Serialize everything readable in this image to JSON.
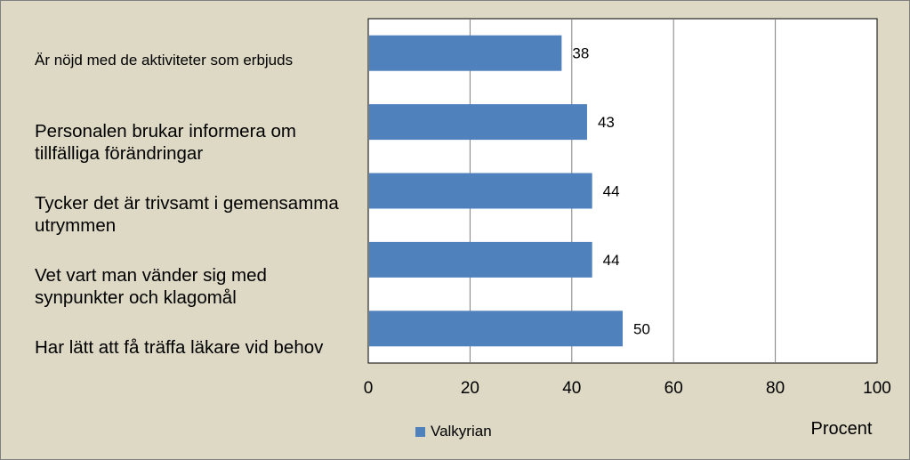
{
  "chart_data": {
    "type": "bar",
    "orientation": "horizontal",
    "categories": [
      "Är nöjd med de aktiviteter som erbjuds",
      "Personalen brukar informera om tillfälliga förändringar",
      "Tycker det är trivsamt i gemensamma utrymmen",
      "Vet vart man vänder sig med synpunkter och klagomål",
      "Har lätt att få träffa läkare vid behov"
    ],
    "series": [
      {
        "name": "Valkyrian",
        "values": [
          38,
          43,
          44,
          44,
          50
        ],
        "color": "#4f81bd"
      }
    ],
    "data_labels": [
      "38",
      "43",
      "44",
      "44",
      "50"
    ],
    "xlim": [
      0,
      100
    ],
    "xticks": [
      "0",
      "20",
      "40",
      "60",
      "80",
      "100"
    ],
    "xlabel": "Procent",
    "grid": true,
    "legend": "bottom-center"
  },
  "colors": {
    "background": "#ddd9c4",
    "plot_area": "#ffffff",
    "bar": "#4f81bd",
    "gridline": "#7f7f7f"
  }
}
